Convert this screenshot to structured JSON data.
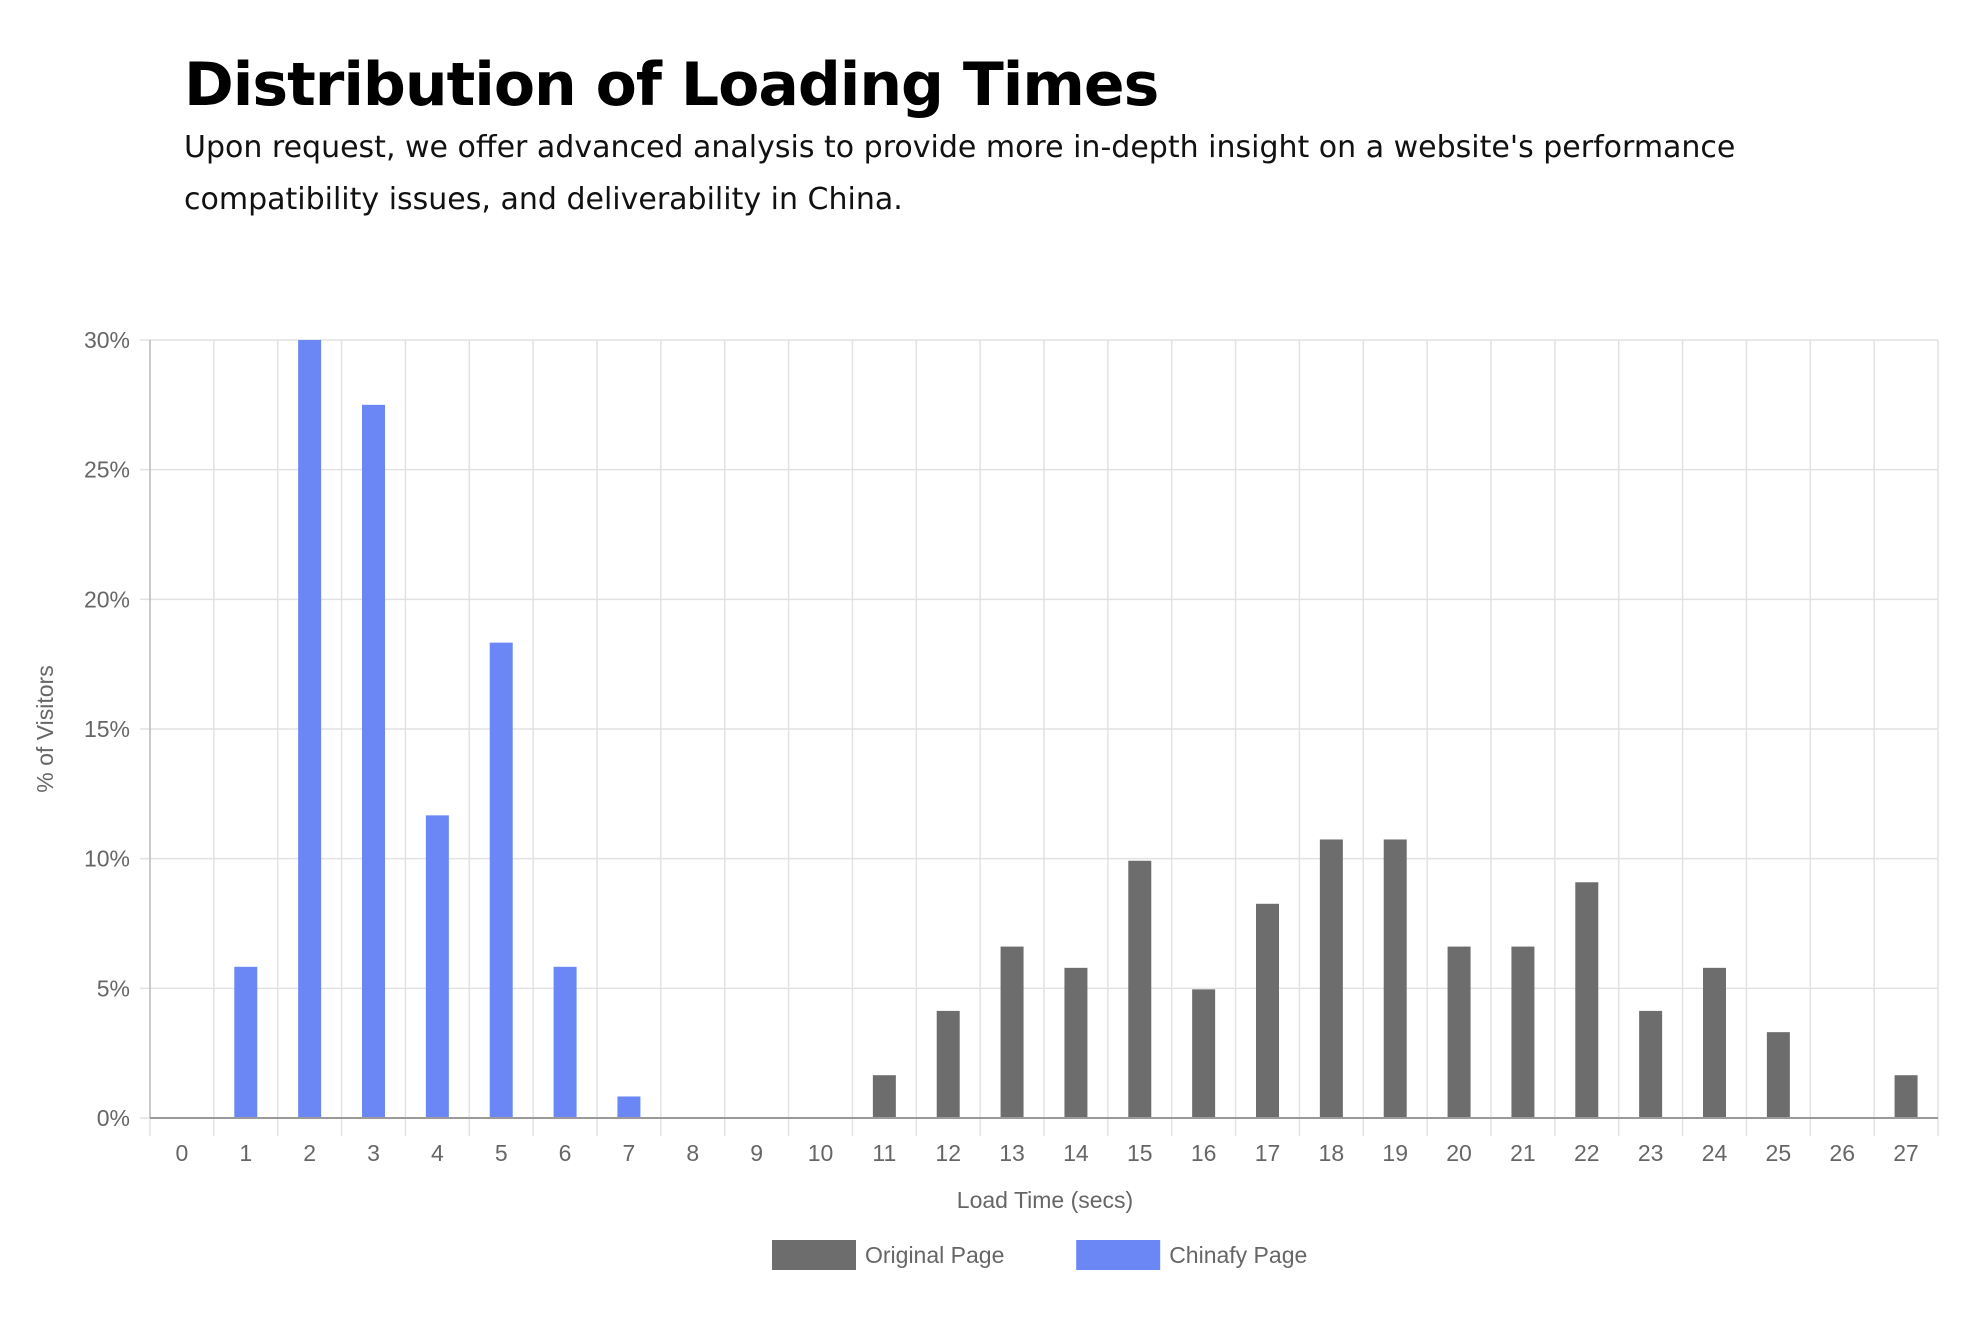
{
  "header": {
    "title": "Distribution of Loading Times",
    "subtitle": "Upon request, we offer advanced analysis to provide more in-depth insight on a website's performance compatibility issues, and deliverability in China."
  },
  "chart_data": {
    "type": "bar",
    "title": "Distribution of Loading Times",
    "xlabel": "Load Time (secs)",
    "ylabel": "% of Visitors",
    "ylim": [
      0,
      30
    ],
    "ytick_step": 5,
    "ytick_suffix": "%",
    "grid": true,
    "legend_position": "bottom",
    "categories": [
      "0",
      "1",
      "2",
      "3",
      "4",
      "5",
      "6",
      "7",
      "8",
      "9",
      "10",
      "11",
      "12",
      "13",
      "14",
      "15",
      "16",
      "17",
      "18",
      "19",
      "20",
      "21",
      "22",
      "23",
      "24",
      "25",
      "26",
      "27"
    ],
    "series": [
      {
        "name": "Original Page",
        "color": "#6d6d6d",
        "values": [
          0,
          0,
          0,
          0,
          0,
          0,
          0,
          0,
          0,
          0,
          0,
          1.65,
          4.13,
          6.61,
          5.79,
          9.92,
          4.96,
          8.26,
          10.74,
          10.74,
          6.61,
          6.61,
          9.09,
          4.13,
          5.79,
          3.31,
          0,
          1.65
        ]
      },
      {
        "name": "Chinafy Page",
        "color": "#6b87f5",
        "values": [
          0,
          5.83,
          30,
          27.5,
          11.67,
          18.33,
          5.83,
          0.83,
          0,
          0,
          0,
          0,
          0,
          0,
          0,
          0,
          0,
          0,
          0,
          0,
          0,
          0,
          0,
          0,
          0,
          0,
          0,
          0
        ]
      }
    ]
  }
}
